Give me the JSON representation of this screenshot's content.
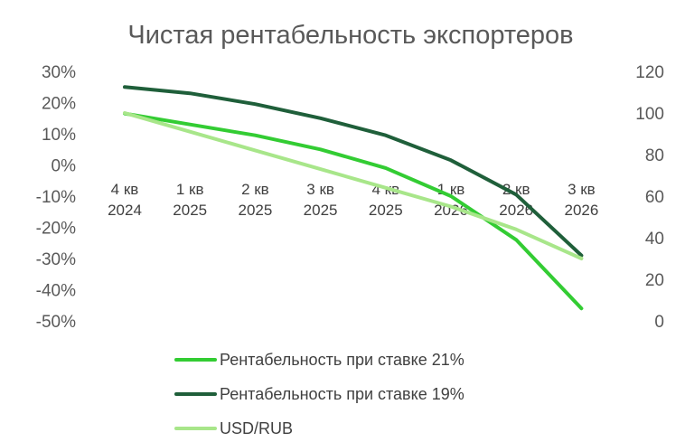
{
  "chart_data": {
    "type": "line",
    "title": "Чистая рентабельность экспортеров",
    "categories": [
      [
        "4 кв",
        "2024"
      ],
      [
        "1 кв",
        "2025"
      ],
      [
        "2 кв",
        "2025"
      ],
      [
        "3 кв",
        "2025"
      ],
      [
        "4 кв",
        "2025"
      ],
      [
        "1 кв",
        "2026"
      ],
      [
        "2 кв",
        "2026"
      ],
      [
        "3 кв",
        "2026"
      ]
    ],
    "y_left": {
      "min": -50,
      "max": 30,
      "step": 10,
      "ticks": [
        "30%",
        "20%",
        "10%",
        "0%",
        "-10%",
        "-20%",
        "-30%",
        "-40%",
        "-50%"
      ]
    },
    "y_right": {
      "min": 0,
      "max": 120,
      "step": 20,
      "ticks": [
        "120",
        "100",
        "80",
        "60",
        "40",
        "20",
        "0"
      ]
    },
    "grid": false,
    "legend_position": "bottom",
    "series": [
      {
        "name": "Рентабельность при ставке 21%",
        "axis": "left",
        "color": "#33cc33",
        "values": [
          16.5,
          13,
          9.5,
          5,
          -1,
          -10,
          -24,
          -46
        ]
      },
      {
        "name": "Рентабельность при ставке 19%",
        "axis": "left",
        "color": "#1f5f3a",
        "values": [
          25,
          23,
          19.5,
          15,
          9.5,
          1.5,
          -9.5,
          -29
        ]
      },
      {
        "name": "USD/RUB",
        "axis": "right",
        "color": "#a8e68a",
        "values": [
          100,
          91,
          82,
          73,
          64,
          55,
          44,
          30
        ]
      }
    ]
  }
}
